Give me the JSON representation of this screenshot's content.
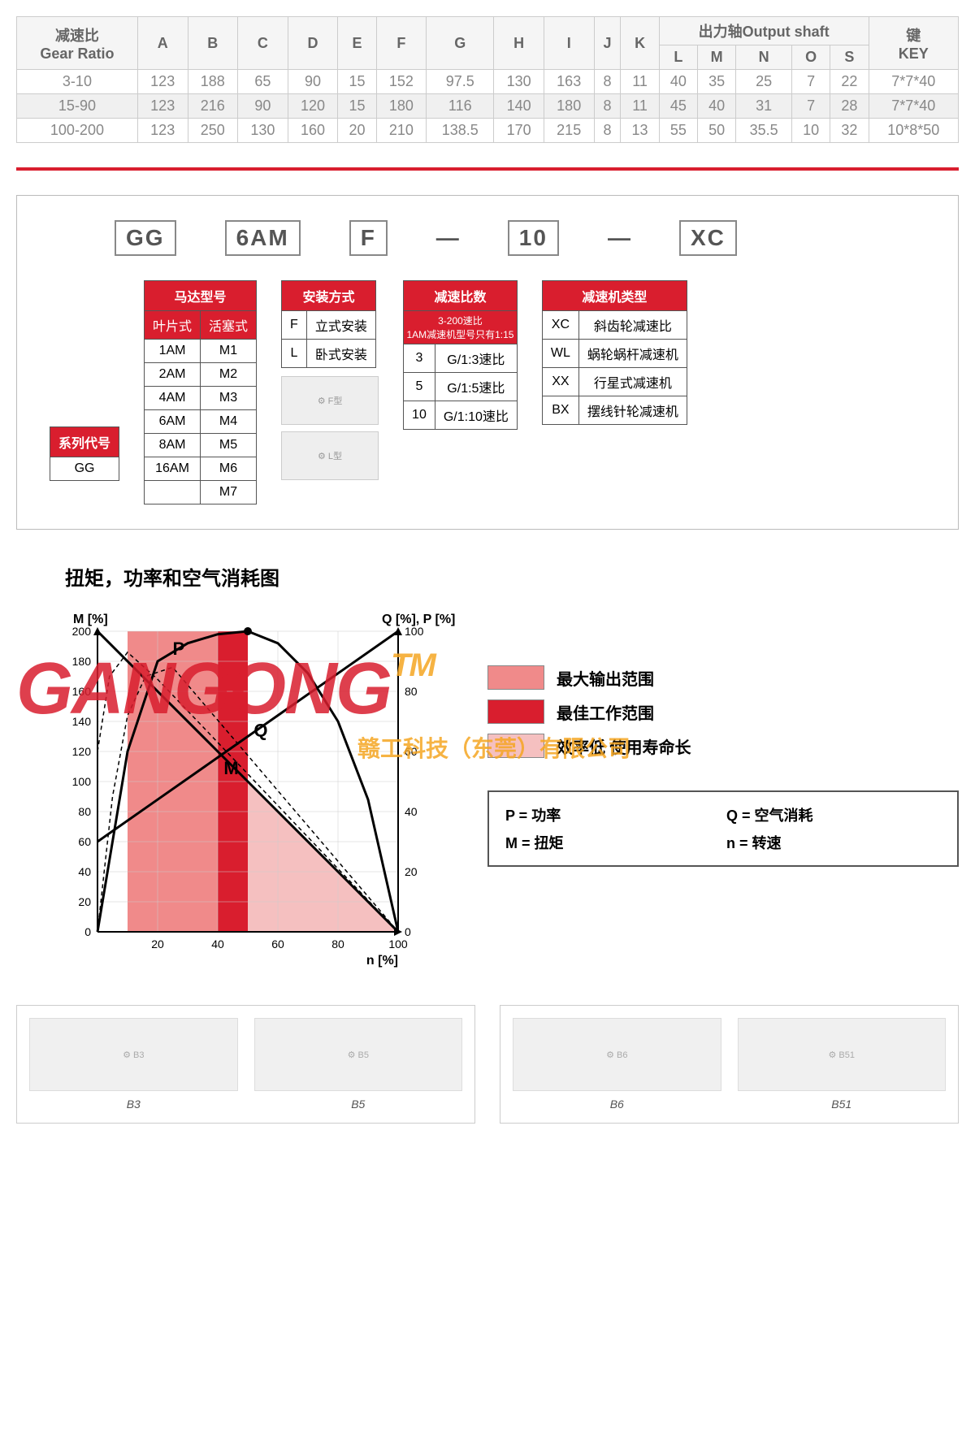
{
  "specTable": {
    "mainHeaders": [
      "减速比\nGear Ratio",
      "A",
      "B",
      "C",
      "D",
      "E",
      "F",
      "G",
      "H",
      "I",
      "J",
      "K"
    ],
    "outputShaftHeader": "出力轴Output shaft",
    "outputShaftCols": [
      "L",
      "M",
      "N",
      "O",
      "S"
    ],
    "keyHeader": "键\nKEY",
    "rows": [
      {
        "ratio": "3-10",
        "vals": [
          "123",
          "188",
          "65",
          "90",
          "15",
          "152",
          "97.5",
          "130",
          "163",
          "8",
          "11",
          "40",
          "35",
          "25",
          "7",
          "22"
        ],
        "key": "7*7*40"
      },
      {
        "ratio": "15-90",
        "vals": [
          "123",
          "216",
          "90",
          "120",
          "15",
          "180",
          "116",
          "140",
          "180",
          "8",
          "11",
          "45",
          "40",
          "31",
          "7",
          "28"
        ],
        "key": "7*7*40"
      },
      {
        "ratio": "100-200",
        "vals": [
          "123",
          "250",
          "130",
          "160",
          "20",
          "210",
          "138.5",
          "170",
          "215",
          "8",
          "13",
          "55",
          "50",
          "35.5",
          "10",
          "32"
        ],
        "key": "10*8*50"
      }
    ]
  },
  "modelCodes": [
    "GG",
    "6AM",
    "F",
    "10",
    "XC"
  ],
  "series": {
    "header": "系列代号",
    "value": "GG"
  },
  "motor": {
    "header": "马达型号",
    "cols": [
      "叶片式",
      "活塞式"
    ],
    "rows": [
      [
        "1AM",
        "M1"
      ],
      [
        "2AM",
        "M2"
      ],
      [
        "4AM",
        "M3"
      ],
      [
        "6AM",
        "M4"
      ],
      [
        "8AM",
        "M5"
      ],
      [
        "16AM",
        "M6"
      ],
      [
        "",
        "M7"
      ]
    ]
  },
  "install": {
    "header": "安装方式",
    "rows": [
      [
        "F",
        "立式安装"
      ],
      [
        "L",
        "卧式安装"
      ]
    ]
  },
  "ratio": {
    "header": "减速比数",
    "sub": "3-200速比\n1AM减速机型号只有1:15",
    "rows": [
      [
        "3",
        "G/1:3速比"
      ],
      [
        "5",
        "G/1:5速比"
      ],
      [
        "10",
        "G/1:10速比"
      ]
    ]
  },
  "reducer": {
    "header": "减速机类型",
    "rows": [
      [
        "XC",
        "斜齿轮减速比"
      ],
      [
        "WL",
        "蜗轮蜗杆减速机"
      ],
      [
        "XX",
        "行星式减速机"
      ],
      [
        "BX",
        "摆线针轮减速机"
      ]
    ]
  },
  "chart": {
    "title": "扭矩，功率和空气消耗图",
    "yLeftLabel": "M [%]",
    "yRightLabel": "Q [%], P [%]",
    "xLabel": "n [%]",
    "yLeftMax": 200,
    "yLeftStep": 20,
    "yRightMax": 100,
    "yRightStep": 20,
    "xMax": 100,
    "xStep": 20,
    "curveLabels": {
      "P": "P",
      "Q": "Q",
      "M": "M"
    },
    "regions": {
      "maxOutput": {
        "color": "#f08a8a",
        "x": [
          10,
          50
        ]
      },
      "bestWork": {
        "color": "#d91e2e",
        "x": [
          40,
          50
        ]
      },
      "lowEff": {
        "color": "#f5c0c0",
        "x": [
          50,
          100
        ]
      }
    },
    "legend": [
      {
        "color": "#f08a8a",
        "label": "最大输出范围"
      },
      {
        "color": "#d91e2e",
        "label": "最佳工作范围"
      },
      {
        "color": "#f5c0c0",
        "label": "效率低 使用寿命长"
      }
    ],
    "defs": [
      {
        "sym": "P",
        "label": "功率"
      },
      {
        "sym": "Q",
        "label": "空气消耗"
      },
      {
        "sym": "M",
        "label": "扭矩"
      },
      {
        "sym": "n",
        "label": "转速"
      }
    ],
    "mCurve": [
      [
        0,
        200
      ],
      [
        20,
        160
      ],
      [
        40,
        120
      ],
      [
        60,
        80
      ],
      [
        80,
        40
      ],
      [
        100,
        0
      ]
    ],
    "pCurve": [
      [
        0,
        0
      ],
      [
        10,
        60
      ],
      [
        20,
        90
      ],
      [
        30,
        96
      ],
      [
        40,
        99
      ],
      [
        50,
        100
      ],
      [
        60,
        96
      ],
      [
        70,
        86
      ],
      [
        80,
        70
      ],
      [
        90,
        44
      ],
      [
        100,
        0
      ]
    ],
    "qCurve": [
      [
        0,
        30
      ],
      [
        20,
        44
      ],
      [
        40,
        58
      ],
      [
        60,
        72
      ],
      [
        80,
        86
      ],
      [
        100,
        100
      ]
    ],
    "mDash": [
      [
        0,
        120
      ],
      [
        4,
        170
      ],
      [
        10,
        186
      ],
      [
        20,
        168
      ],
      [
        40,
        126
      ],
      [
        60,
        84
      ],
      [
        80,
        42
      ],
      [
        100,
        0
      ]
    ],
    "pDash": [
      [
        0,
        0
      ],
      [
        5,
        45
      ],
      [
        10,
        72
      ],
      [
        16,
        85
      ],
      [
        25,
        88
      ],
      [
        100,
        0
      ]
    ]
  },
  "watermark": {
    "logo": "GANGONG",
    "tm": "TM",
    "sub": "赣工科技（东莞）有限公司"
  },
  "products": [
    {
      "items": [
        {
          "label": "B3"
        },
        {
          "label": "B5"
        }
      ]
    },
    {
      "items": [
        {
          "label": "B6"
        },
        {
          "label": "B51"
        }
      ]
    }
  ]
}
